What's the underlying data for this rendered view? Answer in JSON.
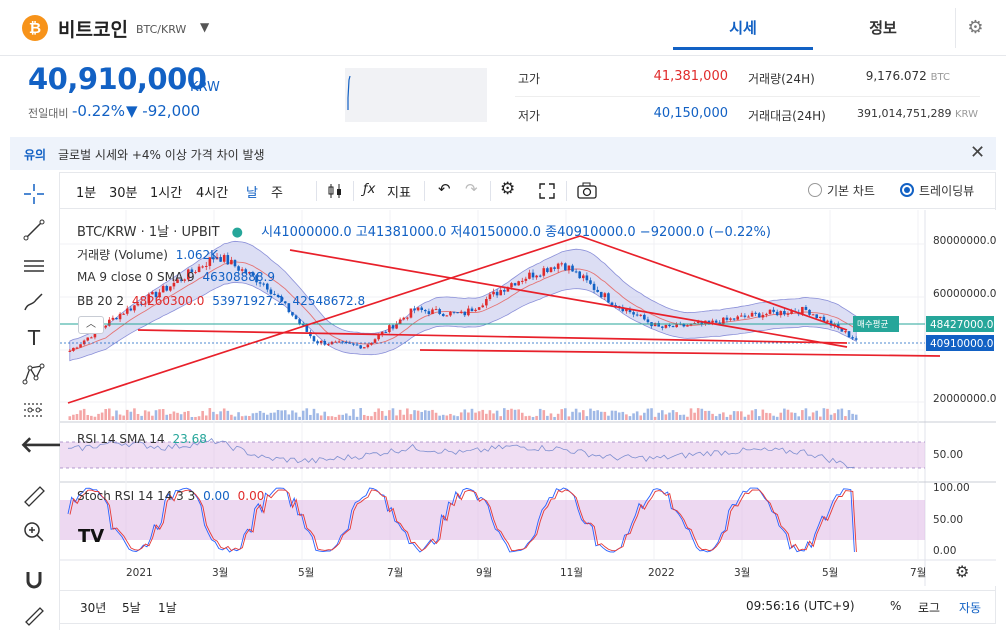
{
  "header": {
    "coin_symbol_glyph": "₿",
    "coin_name": "비트코인",
    "pair": "BTC/KRW",
    "tabs": [
      {
        "label": "시세",
        "active": true
      },
      {
        "label": "정보",
        "active": false
      }
    ]
  },
  "price": {
    "current": "40,910,000",
    "unit": "KRW",
    "change_label": "전일대비",
    "change_pct": "-0.22%",
    "change_amount": "▼ -92,000"
  },
  "stats": {
    "high_label": "고가",
    "high": "41,381,000",
    "low_label": "저가",
    "low": "40,150,000",
    "volume_label": "거래량(24H)",
    "volume": "9,176.072",
    "volume_unit": "BTC",
    "amount_label": "거래대금(24H)",
    "amount": "391,014,751,289",
    "amount_unit": "KRW"
  },
  "notice": {
    "tag": "유의",
    "text": "글로벌 시세와 +4% 이상 가격 차이 발생"
  },
  "toolbar": {
    "intervals": [
      "1분",
      "30분",
      "1시간",
      "4시간",
      "날",
      "주"
    ],
    "indicator_label": "지표",
    "chart_modes": [
      {
        "label": "기본 차트",
        "selected": false
      },
      {
        "label": "트레이딩뷰",
        "selected": true
      }
    ]
  },
  "legend": {
    "title": "BTC/KRW · 1날 · UPBIT",
    "ohlc": "시41000000.0 고41381000.0 저40150000.0 종40910000.0 −92000.0 (−0.22%)",
    "volume_label": "거래량 (Volume)",
    "volume_value": "1.062K",
    "ma_label": "MA 9 close 0 SMA 9",
    "ma_value": "46308888.9",
    "bb_label": "BB 20 2",
    "bb_basis": "48260300.0",
    "bb_upper": "53971927.2",
    "bb_lower": "42548672.8",
    "rsi_label": "RSI 14 SMA 14",
    "rsi_value": "23.68",
    "stoch_label": "Stoch RSI 14 14 3 3",
    "stoch_k": "0.00",
    "stoch_d": "0.00"
  },
  "price_axis": {
    "ticks": [
      "80000000.0",
      "60000000.0",
      "20000000.0"
    ],
    "avg_buy_label": "매수평균",
    "avg_buy_value": "48427000.0",
    "last_value": "40910000.0"
  },
  "rsi_axis": [
    "50.00"
  ],
  "stoch_axis": [
    "100.00",
    "50.00",
    "0.00"
  ],
  "time_axis": [
    "2021",
    "3월",
    "5월",
    "7월",
    "9월",
    "11월",
    "2022",
    "3월",
    "5월",
    "7월"
  ],
  "bottom": {
    "ranges": [
      "30년",
      "5날",
      "1날"
    ],
    "clock": "09:56:16 (UTC+9)",
    "pct": "%",
    "log": "로그",
    "auto": "자동"
  },
  "colors": {
    "accent": "#1261c4",
    "bull": "#e02b2b",
    "bear": "#1261c4",
    "band_fill": "#c5c8ec",
    "trendline": "#e8202a",
    "avg_buy_tag": "#26a69a"
  },
  "chart_data": [
    {
      "type": "line",
      "title": "BTC/KRW · 1날 · UPBIT",
      "x": [
        "2021-01",
        "2021-02",
        "2021-03",
        "2021-04",
        "2021-05",
        "2021-06",
        "2021-07",
        "2021-08",
        "2021-09",
        "2021-10",
        "2021-11",
        "2021-12",
        "2022-01",
        "2022-02",
        "2022-03",
        "2022-04",
        "2022-05"
      ],
      "series": [
        {
          "name": "close",
          "values": [
            36000000,
            52000000,
            64000000,
            78000000,
            65000000,
            40000000,
            38000000,
            54000000,
            52000000,
            66000000,
            75000000,
            58000000,
            46000000,
            48000000,
            52000000,
            54000000,
            40910000
          ]
        }
      ],
      "ylim": [
        10000000,
        90000000
      ]
    },
    {
      "type": "line",
      "title": "RSI 14 SMA 14",
      "series": [
        {
          "name": "RSI",
          "values": [
            55,
            70,
            60,
            72,
            40,
            35,
            45,
            60,
            50,
            62,
            58,
            42,
            40,
            50,
            55,
            52,
            23.68
          ]
        }
      ],
      "ylim": [
        0,
        100
      ]
    },
    {
      "type": "line",
      "title": "Stoch RSI 14 14 3 3",
      "series": [
        {
          "name": "K",
          "values": [
            90,
            20,
            95,
            10,
            80,
            5,
            90,
            15,
            95,
            30,
            85,
            10,
            70,
            20,
            90,
            40,
            0
          ]
        }
      ],
      "ylim": [
        0,
        100
      ]
    }
  ]
}
